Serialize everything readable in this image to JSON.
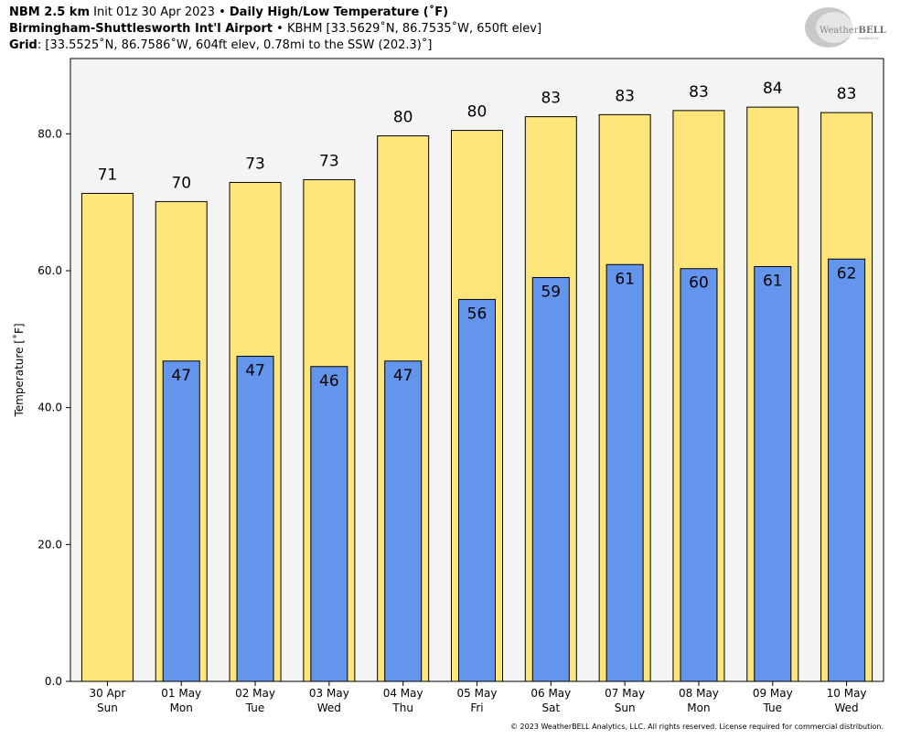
{
  "header": {
    "line1": {
      "model": "NBM 2.5 km",
      "init": "Init 01z 30 Apr 2023",
      "sep": "•",
      "product": "Daily High/Low Temperature (˚F)"
    },
    "line2": {
      "station": "Birmingham-Shuttlesworth Int'l Airport",
      "sep": "•",
      "details": "KBHM [33.5629˚N, 86.7535˚W, 650ft elev]"
    },
    "line3": {
      "label": "Grid",
      "details": ": [33.5525˚N, 86.7586˚W, 604ft elev, 0.78mi to the SSW (202.3)˚]"
    }
  },
  "logo": {
    "text_main": "Weather",
    "text_accent": "BELL",
    "sub": "Analytics LLC"
  },
  "copyright": "© 2023 WeatherBELL Analytics, LLC. All rights reserved. License required for commercial distribution.",
  "colors": {
    "high_bar": "#ffe57a",
    "low_bar": "#6495ed",
    "plot_bg": "#f4f4f4"
  },
  "chart_data": {
    "type": "bar",
    "ylabel": "Temperature [˚F]",
    "ylim": [
      0,
      91
    ],
    "yticks": [
      0,
      20,
      40,
      60,
      80
    ],
    "ytick_labels": [
      "0.0",
      "20.0",
      "40.0",
      "60.0",
      "80.0"
    ],
    "categories": [
      "30 Apr",
      "01 May",
      "02 May",
      "03 May",
      "04 May",
      "05 May",
      "06 May",
      "07 May",
      "08 May",
      "09 May",
      "10 May"
    ],
    "weekdays": [
      "Sun",
      "Mon",
      "Tue",
      "Wed",
      "Thu",
      "Fri",
      "Sat",
      "Sun",
      "Mon",
      "Tue",
      "Wed"
    ],
    "series": [
      {
        "values": [
          71.3,
          70.1,
          72.9,
          73.3,
          79.7,
          80.5,
          82.5,
          82.8,
          83.4,
          83.9,
          83.1
        ],
        "labels": [
          "71",
          "70",
          "73",
          "73",
          "80",
          "80",
          "83",
          "83",
          "83",
          "84",
          "83"
        ]
      },
      {
        "values": [
          null,
          46.8,
          47.5,
          46.0,
          46.8,
          55.8,
          59.0,
          60.9,
          60.3,
          60.6,
          61.7
        ],
        "labels": [
          "",
          "47",
          "47",
          "46",
          "47",
          "56",
          "59",
          "61",
          "60",
          "61",
          "62"
        ]
      }
    ]
  }
}
